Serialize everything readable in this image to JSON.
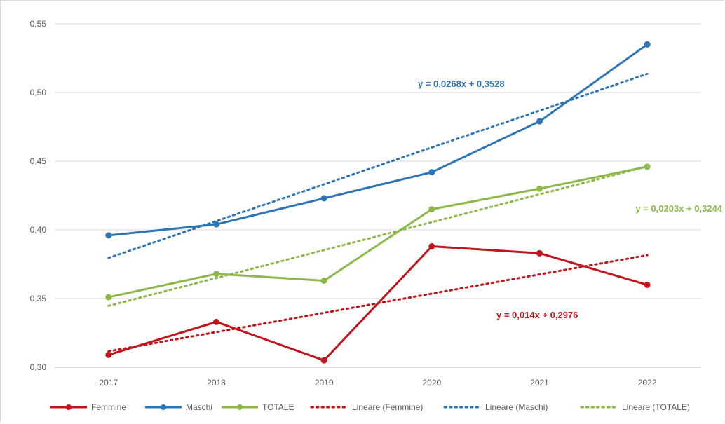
{
  "chart_data": {
    "type": "line",
    "categories": [
      "2017",
      "2018",
      "2019",
      "2020",
      "2021",
      "2022"
    ],
    "ylim": [
      0.3,
      0.55
    ],
    "yticks": [
      "0,30",
      "0,35",
      "0,40",
      "0,45",
      "0,50",
      "0,55"
    ],
    "ytick_values": [
      0.3,
      0.35,
      0.4,
      0.45,
      0.5,
      0.55
    ],
    "grid": true,
    "legend_position": "bottom",
    "series": [
      {
        "name": "Femmine",
        "color": "#c0151b",
        "values": [
          0.309,
          0.333,
          0.305,
          0.388,
          0.383,
          0.36
        ]
      },
      {
        "name": "Maschi",
        "color": "#2e75b6",
        "values": [
          0.396,
          0.404,
          0.423,
          0.442,
          0.479,
          0.535
        ]
      },
      {
        "name": "TOTALE",
        "color": "#8db84a",
        "values": [
          0.351,
          0.368,
          0.363,
          0.415,
          0.43,
          0.446
        ]
      }
    ],
    "trendlines": [
      {
        "name": "Lineare (Femmine)",
        "color": "#c0151b",
        "slope": 0.014,
        "intercept": 0.2976,
        "equation": "y = 0,014x + 0,2976"
      },
      {
        "name": "Lineare (Maschi)",
        "color": "#2e75b6",
        "slope": 0.0268,
        "intercept": 0.3528,
        "equation": "y = 0,0268x + 0,3528"
      },
      {
        "name": "Lineare (TOTALE)",
        "color": "#8db84a",
        "slope": 0.0203,
        "intercept": 0.3244,
        "equation": "y = 0,0203x + 0,3244"
      }
    ]
  }
}
